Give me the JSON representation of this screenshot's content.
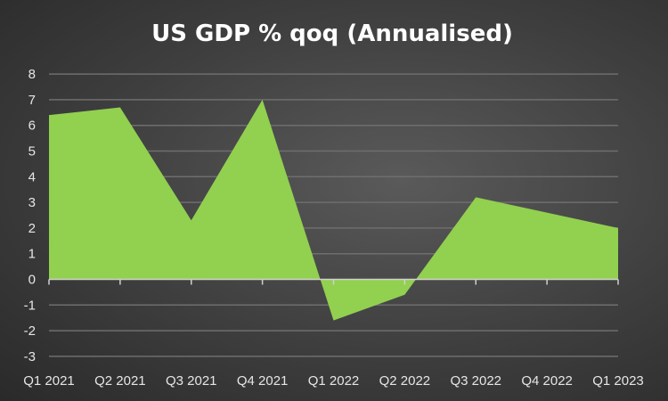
{
  "chart_data": {
    "type": "area",
    "title": "US GDP % qoq (Annualised)",
    "xlabel": "",
    "ylabel": "",
    "categories": [
      "Q1 2021",
      "Q2 2021",
      "Q3 2021",
      "Q4 2021",
      "Q1 2022",
      "Q2 2022",
      "Q3 2022",
      "Q4 2022",
      "Q1 2023"
    ],
    "values": [
      6.4,
      6.7,
      2.3,
      7.0,
      -1.6,
      -0.6,
      3.2,
      2.6,
      2.0
    ],
    "ylim": [
      -3,
      8
    ],
    "yticks": [
      "-3",
      "-2",
      "-1",
      "0",
      "1",
      "2",
      "3",
      "4",
      "5",
      "6",
      "7",
      "8"
    ],
    "grid": true,
    "legend": "none",
    "colors": {
      "fill": "#92d050",
      "grid": "#6e6e6e",
      "text": "#e6e6e6",
      "title": "#ffffff"
    }
  }
}
